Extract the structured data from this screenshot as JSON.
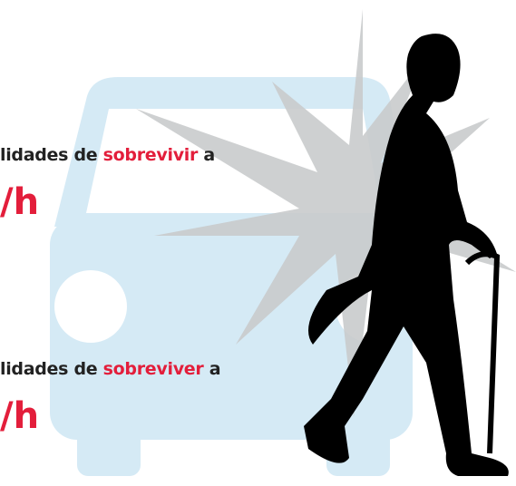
{
  "blocks": [
    {
      "line": [
        "lidades de ",
        "sobrevivir",
        " a"
      ],
      "speed": "/h"
    },
    {
      "line": [
        "lidades de ",
        "sobreviver",
        " a"
      ],
      "speed": "/h"
    }
  ]
}
